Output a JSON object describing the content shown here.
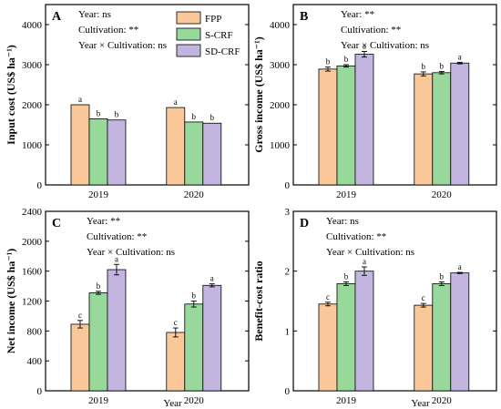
{
  "legend": [
    "FPP",
    "S-CRF",
    "SD-CRF"
  ],
  "colors": {
    "FPP": "#fbc89a",
    "S-CRF": "#98d89a",
    "SD-CRF": "#c3b4e0",
    "axis": "#000000"
  },
  "chart_data": [
    {
      "type": "bar",
      "panel": "A",
      "categories": [
        "2019",
        "2020"
      ],
      "ylabel": "Input cost (US$ ha⁻¹)",
      "xlabel": "",
      "ylim": [
        0,
        4500
      ],
      "yticks": [
        "0",
        "1000",
        "2000",
        "3000",
        "4000"
      ],
      "stats": [
        "Year: ns",
        "Cultivation: **",
        "Year × Cultivation: ns"
      ],
      "legend_shown": true,
      "series": [
        {
          "name": "FPP",
          "values": [
            2000,
            1930
          ],
          "errors": [
            0,
            0
          ],
          "letters": [
            "a",
            "a"
          ]
        },
        {
          "name": "S-CRF",
          "values": [
            1650,
            1570
          ],
          "errors": [
            0,
            0
          ],
          "letters": [
            "b",
            "b"
          ]
        },
        {
          "name": "SD-CRF",
          "values": [
            1620,
            1540
          ],
          "errors": [
            0,
            0
          ],
          "letters": [
            "b",
            "b"
          ]
        }
      ]
    },
    {
      "type": "bar",
      "panel": "B",
      "categories": [
        "2019",
        "2020"
      ],
      "ylabel": "Gross income (US$ ha⁻¹)",
      "xlabel": "",
      "ylim": [
        0,
        4500
      ],
      "yticks": [
        "0",
        "1000",
        "2000",
        "3000",
        "4000"
      ],
      "stats": [
        "Year: **",
        "Cultivation: **",
        "Year × Cultivation: ns"
      ],
      "legend_shown": false,
      "series": [
        {
          "name": "FPP",
          "values": [
            2890,
            2770
          ],
          "errors": [
            50,
            50
          ],
          "letters": [
            "b",
            "b"
          ]
        },
        {
          "name": "S-CRF",
          "values": [
            2970,
            2800
          ],
          "errors": [
            30,
            30
          ],
          "letters": [
            "b",
            "b"
          ]
        },
        {
          "name": "SD-CRF",
          "values": [
            3260,
            3040
          ],
          "errors": [
            70,
            20
          ],
          "letters": [
            "a",
            "a"
          ]
        }
      ]
    },
    {
      "type": "bar",
      "panel": "C",
      "categories": [
        "2019",
        "2020"
      ],
      "ylabel": "Net income (US$ ha⁻¹)",
      "xlabel": "Year",
      "ylim": [
        0,
        2400
      ],
      "yticks": [
        "0",
        "400",
        "800",
        "1200",
        "1600",
        "2000",
        "2400"
      ],
      "stats": [
        "Year: **",
        "Cultivation: **",
        "Year × Cultivation: ns"
      ],
      "legend_shown": false,
      "series": [
        {
          "name": "FPP",
          "values": [
            890,
            780
          ],
          "errors": [
            50,
            60
          ],
          "letters": [
            "c",
            "c"
          ]
        },
        {
          "name": "S-CRF",
          "values": [
            1310,
            1160
          ],
          "errors": [
            20,
            40
          ],
          "letters": [
            "b",
            "b"
          ]
        },
        {
          "name": "SD-CRF",
          "values": [
            1620,
            1410
          ],
          "errors": [
            70,
            20
          ],
          "letters": [
            "a",
            "a"
          ]
        }
      ]
    },
    {
      "type": "bar",
      "panel": "D",
      "categories": [
        "2019",
        "2020"
      ],
      "ylabel": "Benefit-cost ratio",
      "xlabel": "Year",
      "ylim": [
        0,
        3
      ],
      "yticks": [
        "0",
        "1",
        "2",
        "3"
      ],
      "stats": [
        "Year: ns",
        "Cultivation: **",
        "Year × Cultivation: ns"
      ],
      "legend_shown": false,
      "series": [
        {
          "name": "FPP",
          "values": [
            1.45,
            1.43
          ],
          "errors": [
            0.03,
            0.03
          ],
          "letters": [
            "c",
            "c"
          ]
        },
        {
          "name": "S-CRF",
          "values": [
            1.79,
            1.79
          ],
          "errors": [
            0.03,
            0.03
          ],
          "letters": [
            "b",
            "b"
          ]
        },
        {
          "name": "SD-CRF",
          "values": [
            2.0,
            1.97
          ],
          "errors": [
            0.07,
            0.01
          ],
          "letters": [
            "a",
            "a"
          ]
        }
      ]
    }
  ]
}
